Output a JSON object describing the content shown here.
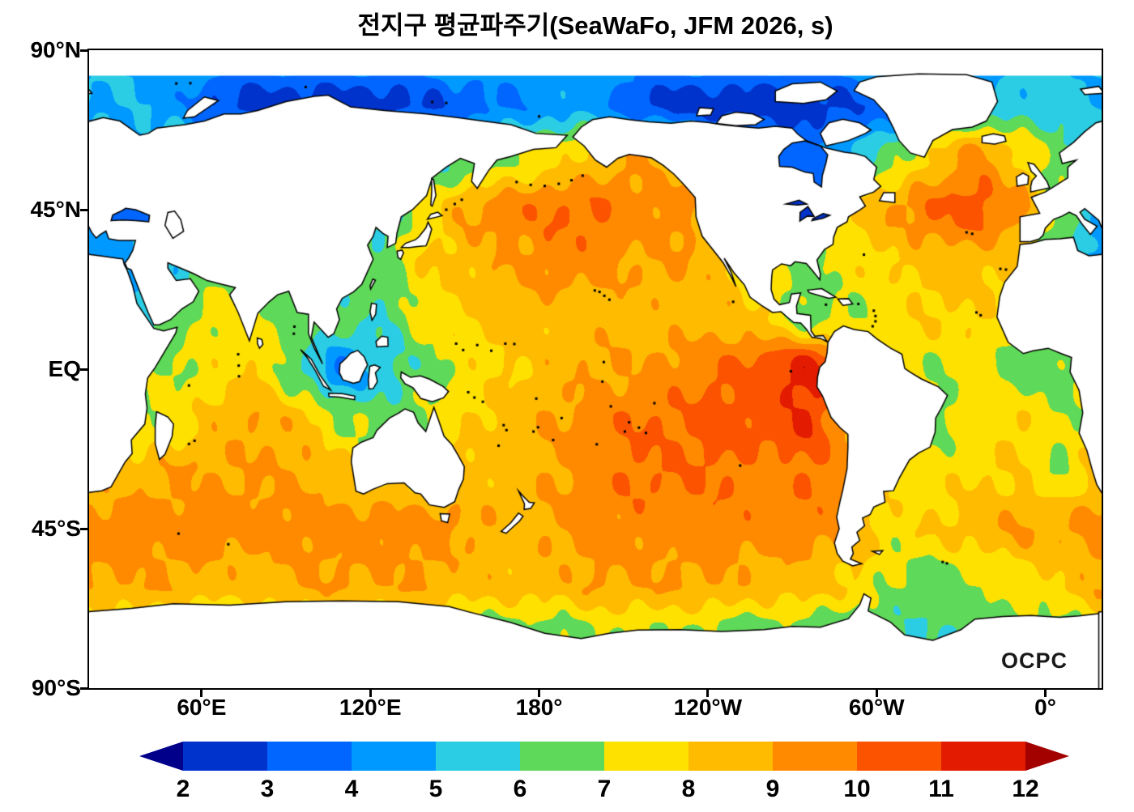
{
  "title": "전지구 평균파주기(SeaWaFo, JFM 2026, s)",
  "watermark": "OCPC",
  "axes": {
    "y_ticks": [
      "90°N",
      "45°N",
      "EQ",
      "45°S",
      "90°S"
    ],
    "x_ticks": [
      "60°E",
      "120°E",
      "180°",
      "120°W",
      "60°W",
      "0°"
    ],
    "x_tick_lons": [
      60,
      120,
      180,
      240,
      300,
      360
    ]
  },
  "colorbar": {
    "ticks": [
      "2",
      "3",
      "4",
      "5",
      "6",
      "7",
      "8",
      "9",
      "10",
      "11",
      "12"
    ],
    "units": "s",
    "colors": [
      "#00008B",
      "#0033CC",
      "#0066FF",
      "#0099FF",
      "#2BCDE4",
      "#5FD959",
      "#FFE100",
      "#FFBB00",
      "#FF8A00",
      "#FB5300",
      "#E31B00",
      "#A30000"
    ],
    "underflow_color": "#00008B",
    "overflow_color": "#A30000"
  },
  "colors": {
    "land": "#FFFFFF",
    "coastline": "#000000",
    "ice": "#FFFFFF",
    "background": "#FFFFFF"
  },
  "chart_data": {
    "type": "heatmap",
    "title": "전지구 평균파주기(SeaWaFo, JFM 2026, s)",
    "variable": "global mean wave period",
    "model_label": "SeaWaFo",
    "period_label": "JFM 2026",
    "units": "s",
    "projection": "equirectangular",
    "lon_range": [
      20,
      380
    ],
    "lat_range": [
      90,
      -90
    ],
    "value_bins": [
      2,
      3,
      4,
      5,
      6,
      7,
      8,
      9,
      10,
      11,
      12
    ],
    "lat_nodes": [
      90,
      75,
      60,
      45,
      30,
      15,
      0,
      -15,
      -30,
      -45,
      -60,
      -75,
      -90
    ],
    "lon_nodes": [
      20,
      35,
      50,
      65,
      80,
      95,
      110,
      125,
      140,
      155,
      170,
      185,
      200,
      215,
      230,
      245,
      260,
      275,
      290,
      305,
      320,
      335,
      350,
      365,
      380
    ],
    "values": [
      [
        5,
        5,
        5,
        5,
        5,
        5,
        5,
        5,
        5,
        5,
        5,
        5,
        5,
        5,
        5,
        5,
        5,
        5,
        5,
        5,
        5,
        5,
        5,
        5,
        5
      ],
      [
        5,
        5,
        4.5,
        3,
        2.5,
        2.5,
        2.5,
        2.5,
        3,
        3.5,
        4,
        4.5,
        4.5,
        3,
        2.5,
        2.5,
        2.5,
        2.5,
        3,
        3.5,
        4,
        5,
        5.5,
        5.5,
        5
      ],
      [
        5,
        5,
        6,
        6,
        6,
        6,
        6,
        6,
        5.5,
        6,
        7,
        7.5,
        8.5,
        9,
        8.5,
        6,
        4,
        4,
        5,
        6.5,
        8,
        9.5,
        8,
        6.5,
        5
      ],
      [
        5,
        4.5,
        5,
        6,
        6.5,
        7,
        6.5,
        5.5,
        7.5,
        9,
        9.5,
        10,
        10,
        9.5,
        9.5,
        8,
        7,
        6.5,
        8,
        9,
        10,
        10.5,
        9.5,
        7,
        5
      ],
      [
        4.5,
        5,
        5,
        6.5,
        6.5,
        6,
        6,
        6.5,
        8,
        8.5,
        9,
        9.5,
        9.5,
        9,
        9,
        8.5,
        7,
        6.5,
        7.5,
        8,
        8.5,
        8.5,
        8,
        5.5,
        4.5
      ],
      [
        6,
        4.5,
        6.5,
        7.5,
        7,
        6.5,
        6.5,
        6,
        7.5,
        8,
        8.5,
        8.5,
        8.5,
        8.5,
        8.5,
        8.5,
        8,
        6.5,
        7,
        7.5,
        8,
        8,
        7.5,
        6.5,
        6
      ],
      [
        7,
        7,
        7,
        7.5,
        8,
        6,
        4,
        5.5,
        6.5,
        7.5,
        8,
        8.5,
        9,
        9,
        9.5,
        10,
        10.5,
        11.5,
        10,
        8,
        7,
        7.5,
        6.5,
        6.5,
        7
      ],
      [
        7.5,
        7,
        7.5,
        8.5,
        9,
        8.5,
        7,
        6.5,
        7,
        8,
        8.5,
        9,
        9.5,
        10,
        10,
        10.5,
        10.5,
        11,
        9,
        7.5,
        6.5,
        7.5,
        8,
        7,
        7.5
      ],
      [
        8.5,
        8.5,
        9,
        9,
        9,
        9,
        8.5,
        8,
        8,
        8.5,
        8.5,
        9,
        9.5,
        10,
        10,
        10,
        9.5,
        10,
        9.5,
        8,
        7.5,
        8,
        8,
        7,
        8.5
      ],
      [
        9.5,
        9.5,
        9.5,
        9.5,
        9.5,
        9.5,
        9.5,
        9.5,
        9.5,
        9,
        8.5,
        9,
        9.5,
        9.5,
        9.5,
        9.5,
        9.5,
        9.5,
        9,
        7.5,
        8,
        8.5,
        9,
        9,
        9.5
      ],
      [
        9,
        9,
        9,
        8.5,
        8.5,
        9,
        9,
        9,
        9,
        8.5,
        8.5,
        8.5,
        9,
        9,
        9,
        9,
        8.5,
        8.5,
        8,
        7,
        6.5,
        7,
        7.5,
        8,
        9
      ],
      [
        7,
        7,
        6.5,
        6.5,
        6.5,
        7,
        7,
        7,
        7,
        6.5,
        6.5,
        6.5,
        7,
        7,
        7,
        6.5,
        6.5,
        6.5,
        6,
        6,
        6,
        6,
        6.5,
        6.5,
        7
      ],
      [
        6,
        6,
        6,
        6,
        6,
        6,
        6,
        6,
        6,
        6,
        6,
        6,
        6,
        6,
        6,
        6,
        6,
        6,
        6,
        6,
        6,
        6,
        6,
        6,
        6
      ]
    ]
  }
}
